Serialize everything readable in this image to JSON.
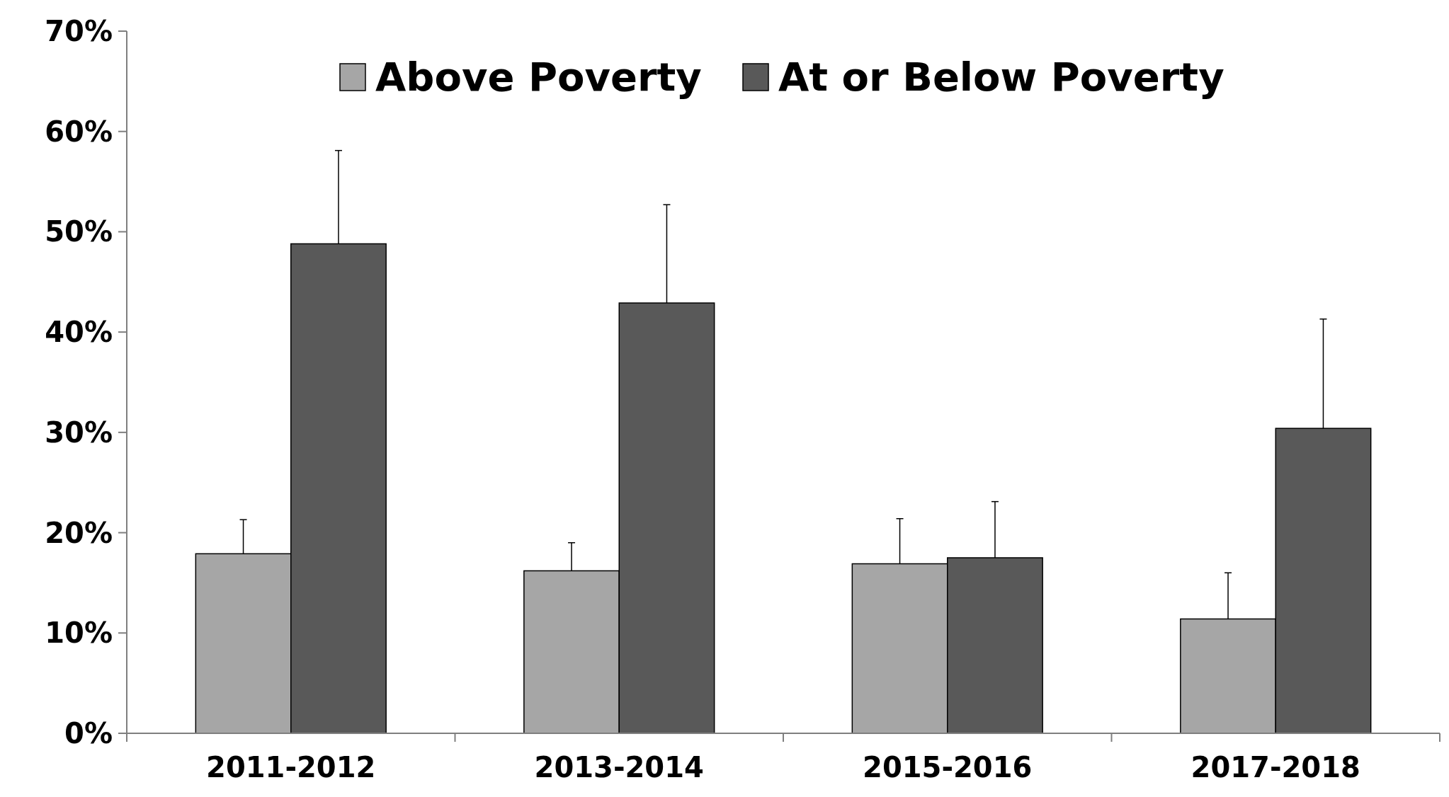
{
  "chart_data": {
    "type": "bar",
    "categories": [
      "2011-2012",
      "2013-2014",
      "2015-2016",
      "2017-2018"
    ],
    "series": [
      {
        "name": "Above Poverty",
        "color": "#a6a6a6",
        "values": [
          17.9,
          16.2,
          16.9,
          11.4
        ],
        "errors": [
          [
            17.9,
            21.3
          ],
          [
            16.2,
            19.0
          ],
          [
            16.9,
            21.4
          ],
          [
            11.4,
            16.0
          ]
        ]
      },
      {
        "name": "At or Below Poverty",
        "color": "#595959",
        "values": [
          48.8,
          42.9,
          17.5,
          30.4
        ],
        "errors": [
          [
            48.8,
            58.1
          ],
          [
            42.9,
            52.7
          ],
          [
            17.5,
            23.1
          ],
          [
            30.4,
            41.3
          ]
        ]
      }
    ],
    "ylim": [
      0,
      70
    ],
    "yticks": [
      {
        "value": 0,
        "label": "0%"
      },
      {
        "value": 10,
        "label": "10%"
      },
      {
        "value": 20,
        "label": "20%"
      },
      {
        "value": 30,
        "label": "30%"
      },
      {
        "value": 40,
        "label": "40%"
      },
      {
        "value": 50,
        "label": "50%"
      },
      {
        "value": 60,
        "label": "60%"
      },
      {
        "value": 70,
        "label": "70%"
      }
    ],
    "grid": false,
    "legend": "top"
  }
}
